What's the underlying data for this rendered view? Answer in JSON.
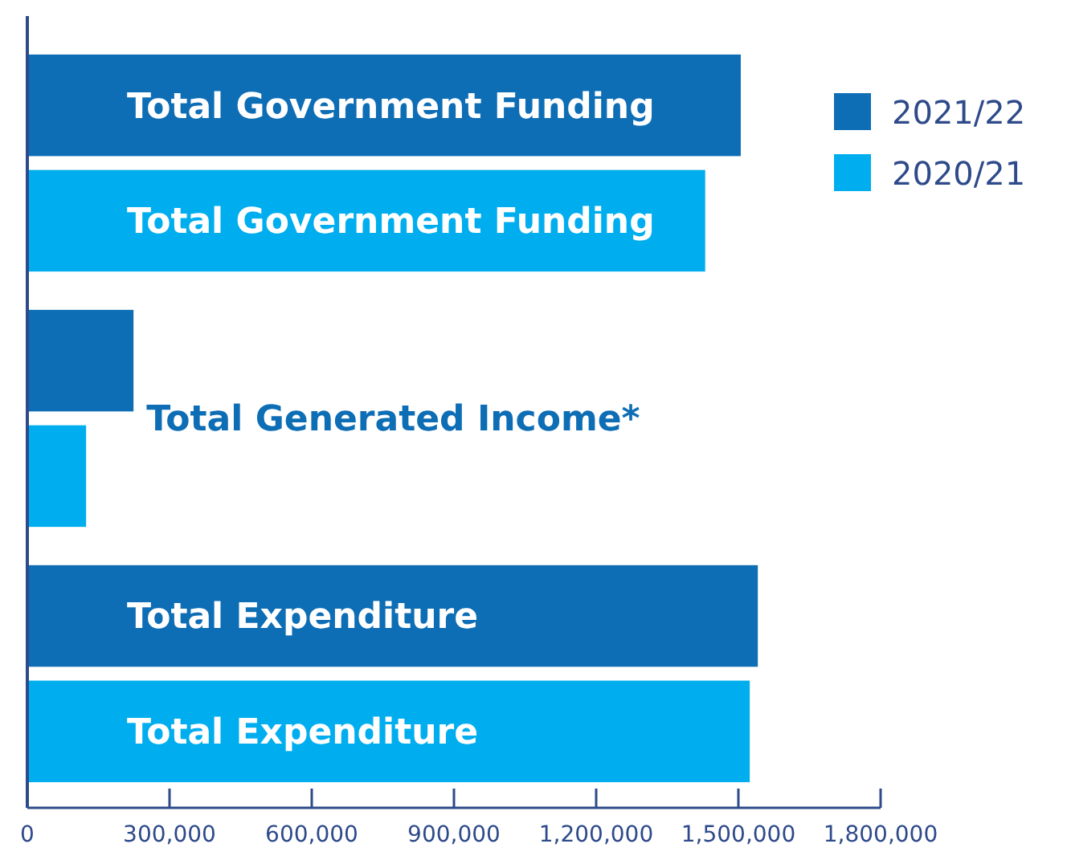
{
  "chart_data": {
    "type": "bar",
    "orientation": "horizontal",
    "categories": [
      "Total Government Funding",
      "Total Generated Income*",
      "Total Expenditure"
    ],
    "series": [
      {
        "name": "2021/22",
        "color": "#0d6db5",
        "values": [
          1505000,
          224000,
          1541000
        ]
      },
      {
        "name": "2020/21",
        "color": "#00aeef",
        "values": [
          1430000,
          124000,
          1524000
        ]
      }
    ],
    "xlim": [
      0,
      1800000
    ],
    "xticks": [
      0,
      {
        "value": 300000,
        "label": "300,000"
      },
      {
        "value": 600000,
        "label": "600,000"
      },
      {
        "value": 900000,
        "label": "900,000"
      },
      {
        "value": 1200000,
        "label": "1,200,000"
      },
      {
        "value": 1500000,
        "label": "1,500,000"
      },
      {
        "value": 1800000,
        "label": "1,800,000"
      }
    ],
    "legend": "top right",
    "grid": false
  }
}
